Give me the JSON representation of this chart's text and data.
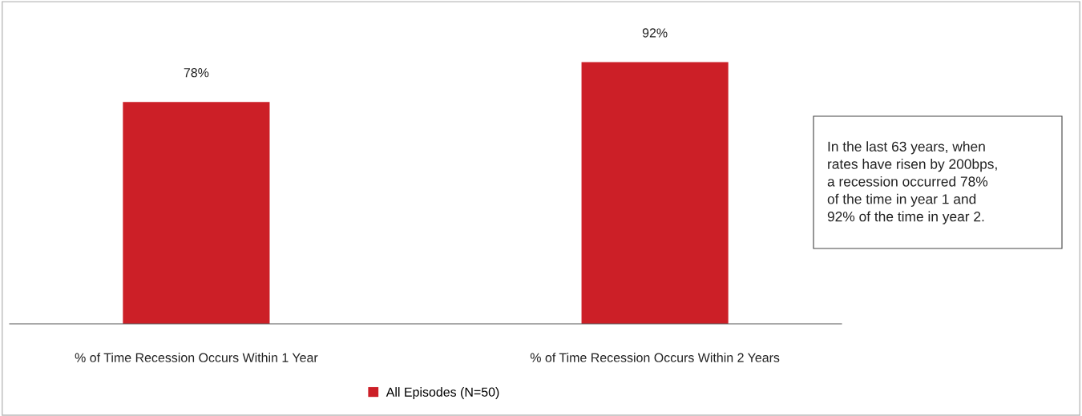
{
  "chart_data": {
    "type": "bar",
    "categories": [
      "% of Time Recession Occurs Within 1 Year",
      "% of Time Recession Occurs Within 2 Years"
    ],
    "series": [
      {
        "name": "All Episodes (N=50)",
        "color": "#cc1f27",
        "values": [
          78,
          92
        ],
        "value_labels": [
          "78%",
          "92%"
        ]
      }
    ],
    "annotations": [
      "In the last 63 years, when\nrates have risen by 200bps,\na recession occurred 78%\nof the time in year 1 and\n92% of the time in year 2."
    ],
    "legend": "bottom",
    "grid": false
  }
}
